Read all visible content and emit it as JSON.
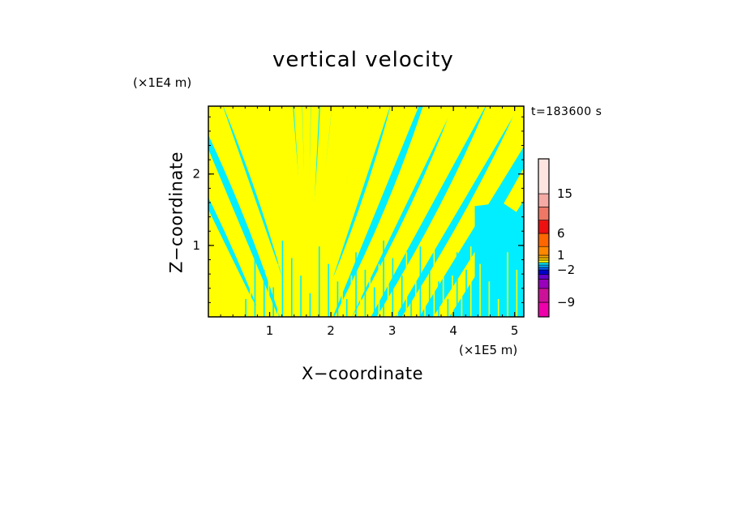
{
  "chart_data": {
    "type": "heatmap",
    "title": "vertical velocity",
    "xlabel": "X−coordinate",
    "ylabel": "Z−coordinate",
    "x_unit": "(×1E5 m)",
    "y_unit": "(×1E4 m)",
    "time_label": "t=183600 s",
    "xlim": [
      0,
      5.15
    ],
    "ylim": [
      0,
      2.95
    ],
    "x_ticks": [
      "1",
      "2",
      "3",
      "4",
      "5"
    ],
    "y_ticks": [
      "1",
      "2"
    ],
    "field_colors": {
      "positive": "#ffff00",
      "negative": "#00eeff"
    },
    "colorbar": {
      "ticks": [
        "15",
        "6",
        "1",
        "−2",
        "−9"
      ],
      "tick_values": [
        15,
        6,
        1,
        -2,
        -9
      ],
      "bands": [
        {
          "from": -12,
          "to": -9,
          "color": "#ee00aa"
        },
        {
          "from": -9,
          "to": -6,
          "color": "#cc1199"
        },
        {
          "from": -6,
          "to": -4,
          "color": "#9900bb"
        },
        {
          "from": -4,
          "to": -3,
          "color": "#6600cc"
        },
        {
          "from": -3,
          "to": -2,
          "color": "#0000cc"
        },
        {
          "from": -2,
          "to": -1.5,
          "color": "#0066ff"
        },
        {
          "from": -1.5,
          "to": -1,
          "color": "#00aaff"
        },
        {
          "from": -1,
          "to": -0.5,
          "color": "#00eeff"
        },
        {
          "from": -0.5,
          "to": 0,
          "color": "#ffff00"
        },
        {
          "from": 0,
          "to": 0.5,
          "color": "#ffcc00"
        },
        {
          "from": 0.5,
          "to": 1,
          "color": "#ffaa00"
        },
        {
          "from": 1,
          "to": 3,
          "color": "#ff8800"
        },
        {
          "from": 3,
          "to": 6,
          "color": "#ff6600"
        },
        {
          "from": 6,
          "to": 9,
          "color": "#ee1111"
        },
        {
          "from": 9,
          "to": 12,
          "color": "#ee7766"
        },
        {
          "from": 12,
          "to": 15,
          "color": "#f5aaa5"
        },
        {
          "from": 15,
          "to": 20,
          "color": "#fde4e0"
        }
      ]
    }
  }
}
